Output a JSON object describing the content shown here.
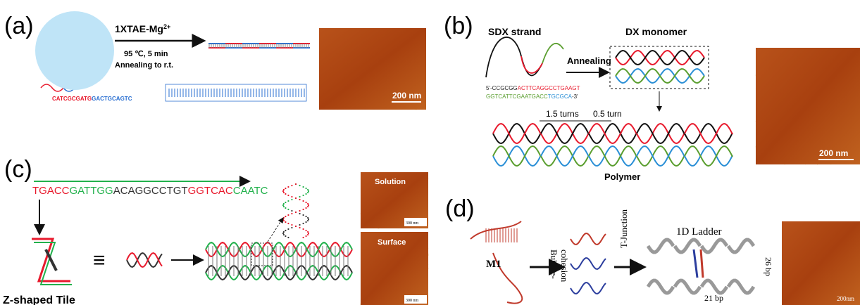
{
  "panel_a": {
    "label": "(a)",
    "buffer": {
      "text": "1XTAE-Mg",
      "sup": "2+"
    },
    "condition": "95 ℃, 5 min",
    "annealing": "Annealing to r.t.",
    "sequence": [
      {
        "text": "CATCGCGATG",
        "color": "#e8192c"
      },
      {
        "text": "GACTGCAGTC",
        "color": "#2a6fd1"
      }
    ],
    "scale_bar": "200 nm"
  },
  "panel_b": {
    "label": "(b)",
    "strand_title": "SDX strand",
    "monomer_title": "DX monomer",
    "annealing": "Annealing",
    "sequence_1": [
      {
        "text": "5'-CCGCGG",
        "color": "#222222"
      },
      {
        "text": "ACTTCAGGCCTGAAGT",
        "color": "#e8192c"
      }
    ],
    "sequence_2": [
      {
        "text": "GGTCATTCGAATGACC",
        "color": "#5a9e2f"
      },
      {
        "text": "TGCGCA",
        "color": "#2a8fd6"
      },
      {
        "text": "-3'",
        "color": "#222222"
      }
    ],
    "turns_1": "1.5 turns",
    "turns_2": "0.5 turn",
    "polymer": "Polymer",
    "scale_bar": "200 nm"
  },
  "panel_c": {
    "label": "(c)",
    "sequence": [
      {
        "text": "TGACC",
        "color": "#e8192c"
      },
      {
        "text": "GATTGG",
        "color": "#22b14c"
      },
      {
        "text": "ACAGGCCTGT",
        "color": "#333333"
      },
      {
        "text": "GGTCAC",
        "color": "#e8192c"
      },
      {
        "text": "CAATC",
        "color": "#22b14c"
      }
    ],
    "equivalent": "≡",
    "tile_name": "Z-shaped Tile",
    "image_1": "Solution",
    "image_2": "Surface",
    "scale_bar_1": "300 nm",
    "scale_bar_2": "300 nm"
  },
  "panel_d": {
    "label": "(d)",
    "monomer": "M1",
    "step_1": [
      "Bubble-",
      "cohesion"
    ],
    "step_2": "T-Junction",
    "product": "1D Ladder",
    "height": "26 bp",
    "spacing": "21 bp",
    "scale_bar": "200nm"
  }
}
